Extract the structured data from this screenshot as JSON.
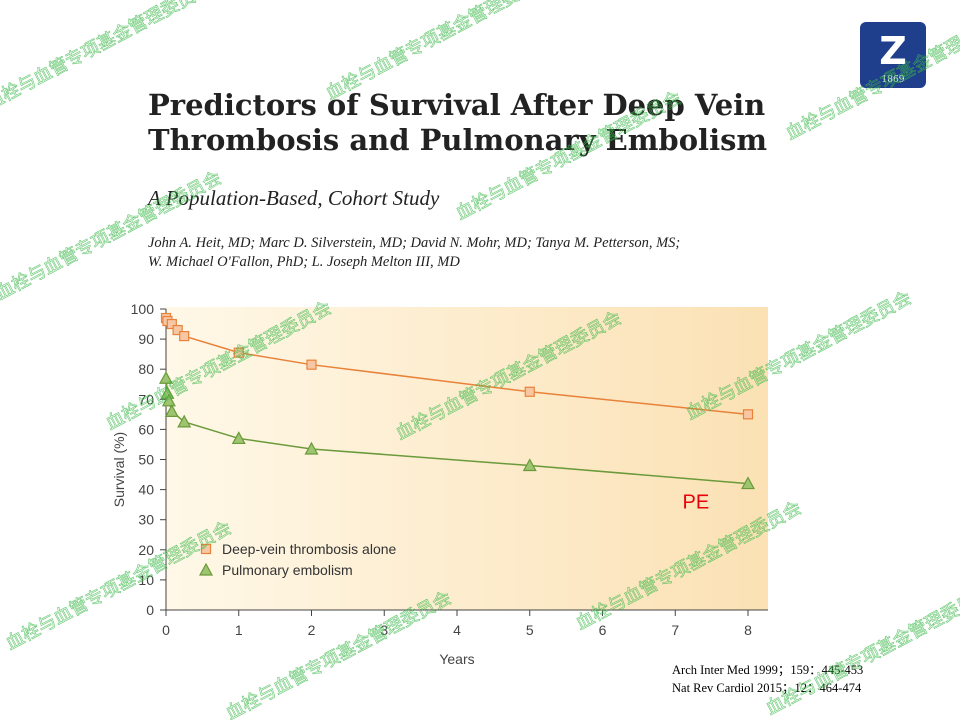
{
  "header": {
    "title_line1": "Predictors of Survival After Deep Vein",
    "title_line2": "Thrombosis and Pulmonary Embolism",
    "subtitle": "A Population-Based, Cohort Study",
    "authors_line1": "John A. Heit, MD; Marc D. Silverstein, MD; David N. Mohr, MD; Tanya M. Petterson, MS;",
    "authors_line2": "W. Michael O'Fallon, PhD; L. Joseph Melton III, MD"
  },
  "logo": {
    "year": "1869",
    "letter": "Z",
    "color": "#1f3e8c"
  },
  "references": {
    "line1": "Arch Inter Med 1999；159：445-453",
    "line2": "Nat Rev Cardiol 2015；12：464-474"
  },
  "watermark_text": "血栓与血管专项基金管理委员会",
  "chart_data": {
    "type": "line",
    "xlabel": "Years",
    "ylabel": "Survival (%)",
    "xlim": [
      0,
      8
    ],
    "ylim": [
      0,
      100
    ],
    "xticks": [
      0,
      1,
      2,
      3,
      4,
      5,
      6,
      7,
      8
    ],
    "yticks": [
      0,
      10,
      20,
      30,
      40,
      50,
      60,
      70,
      80,
      90,
      100
    ],
    "legend_position": "bottom-left",
    "annotation": "PE",
    "annotation_color": "#e8000b",
    "series": [
      {
        "name": "Deep-vein thrombosis alone",
        "marker": "square",
        "color": "#e8823a",
        "fill": "#f7c7a3",
        "x": [
          0,
          0.02,
          0.08,
          0.16,
          0.25,
          1,
          2,
          5,
          8
        ],
        "y": [
          97,
          96,
          95,
          93,
          91,
          85.5,
          81.5,
          72.5,
          65
        ]
      },
      {
        "name": "Pulmonary embolism",
        "marker": "triangle",
        "color": "#6a9a3a",
        "fill": "#9dc46e",
        "x": [
          0,
          0.02,
          0.04,
          0.08,
          0.25,
          1,
          2,
          5,
          8
        ],
        "y": [
          77,
          72,
          69.5,
          66,
          62.5,
          57,
          53.5,
          48,
          42
        ]
      }
    ]
  }
}
